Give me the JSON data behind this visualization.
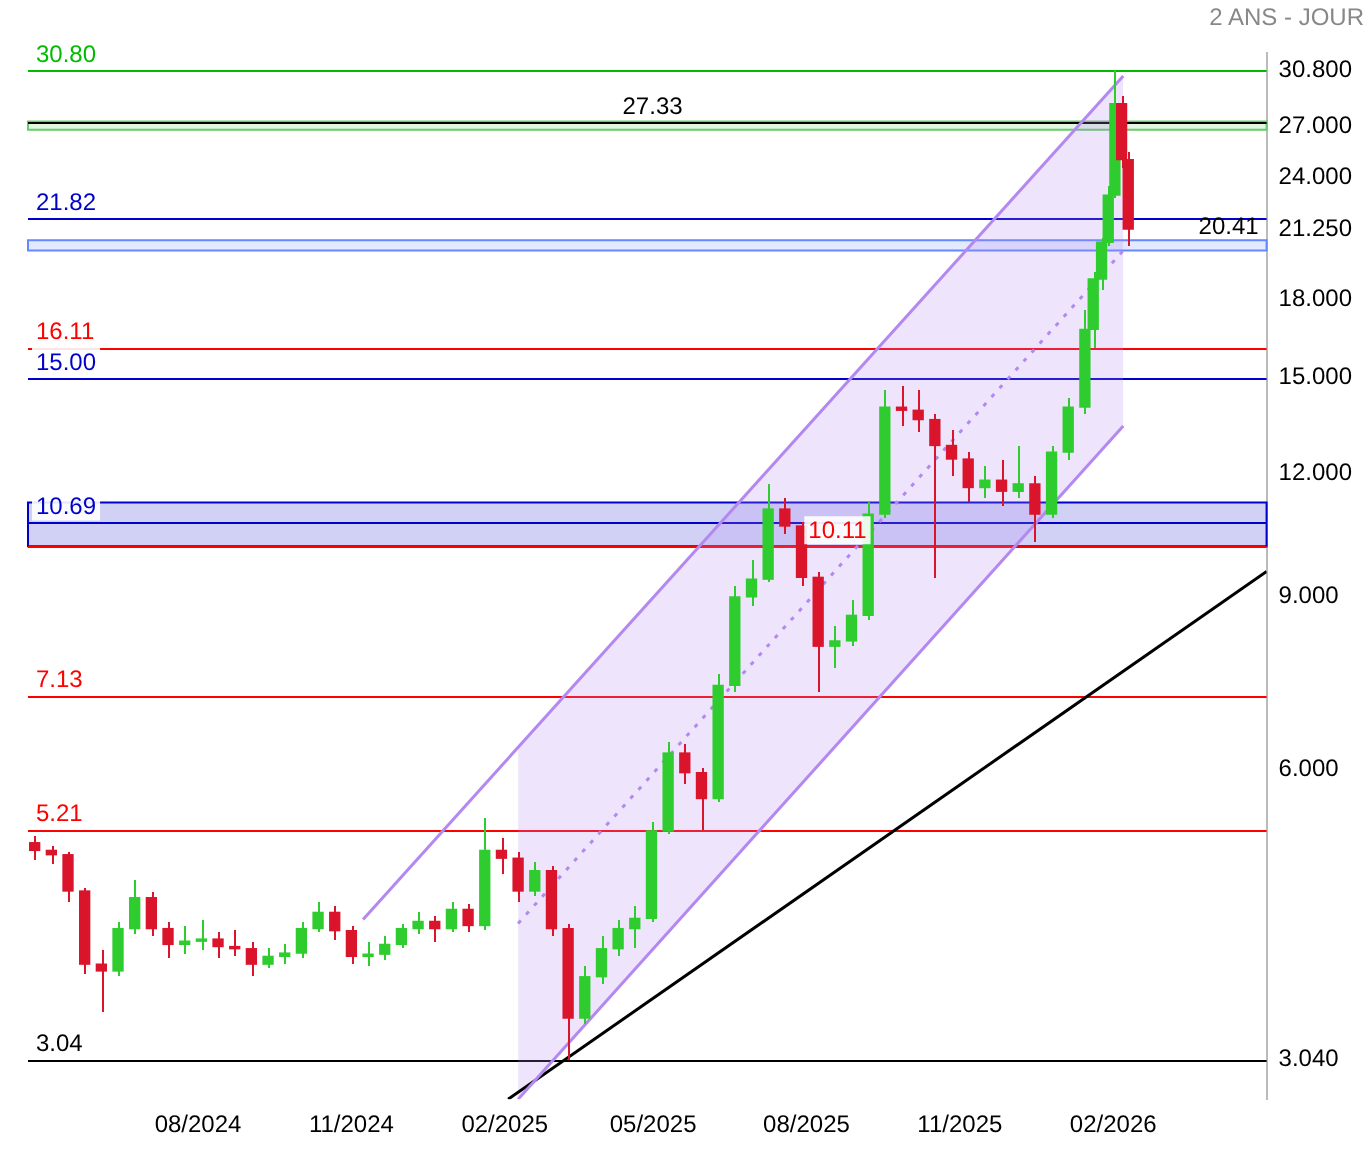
{
  "chart_data": {
    "type": "candlestick",
    "subtitle": "2 ANS - JOUR",
    "x": [
      "2024-04-25",
      "2024-05-05",
      "2024-05-15",
      "2024-05-25",
      "2024-06-04",
      "2024-06-14",
      "2024-06-24",
      "2024-07-04",
      "2024-07-14",
      "2024-07-24",
      "2024-08-03",
      "2024-08-13",
      "2024-08-23",
      "2024-09-02",
      "2024-09-12",
      "2024-09-22",
      "2024-10-02",
      "2024-10-12",
      "2024-10-22",
      "2024-11-01",
      "2024-11-11",
      "2024-11-21",
      "2024-12-01",
      "2024-12-11",
      "2024-12-21",
      "2024-12-31",
      "2025-01-10",
      "2025-01-20",
      "2025-01-30",
      "2025-02-09",
      "2025-02-19",
      "2025-03-01",
      "2025-03-11",
      "2025-03-21",
      "2025-03-31",
      "2025-04-10",
      "2025-04-20",
      "2025-04-30",
      "2025-05-10",
      "2025-05-20",
      "2025-05-30",
      "2025-06-09",
      "2025-06-19",
      "2025-06-29",
      "2025-07-09",
      "2025-07-19",
      "2025-07-29",
      "2025-08-08",
      "2025-08-18",
      "2025-08-28",
      "2025-09-07",
      "2025-09-17",
      "2025-09-27",
      "2025-10-07",
      "2025-10-17",
      "2025-10-27",
      "2025-11-06",
      "2025-11-16",
      "2025-11-26",
      "2025-12-06",
      "2025-12-16",
      "2025-12-26",
      "2026-01-05",
      "2026-01-15",
      "2026-01-20",
      "2026-01-25",
      "2026-01-29",
      "2026-02-02",
      "2026-02-06",
      "2026-02-10"
    ],
    "ohlc": [
      [
        5.05,
        5.12,
        4.85,
        4.96
      ],
      [
        4.96,
        5.02,
        4.8,
        4.91
      ],
      [
        4.91,
        4.95,
        4.4,
        4.51
      ],
      [
        4.51,
        4.55,
        3.72,
        3.8
      ],
      [
        3.8,
        3.92,
        3.4,
        3.74
      ],
      [
        3.74,
        4.2,
        3.7,
        4.13
      ],
      [
        4.13,
        4.62,
        4.08,
        4.44
      ],
      [
        4.44,
        4.5,
        4.05,
        4.13
      ],
      [
        4.13,
        4.2,
        3.85,
        3.98
      ],
      [
        3.98,
        4.15,
        3.9,
        4.01
      ],
      [
        4.01,
        4.22,
        3.92,
        4.03
      ],
      [
        4.03,
        4.1,
        3.85,
        3.96
      ],
      [
        3.96,
        4.12,
        3.88,
        3.94
      ],
      [
        3.94,
        4.0,
        3.7,
        3.8
      ],
      [
        3.8,
        3.95,
        3.76,
        3.87
      ],
      [
        3.87,
        3.98,
        3.8,
        3.9
      ],
      [
        3.9,
        4.2,
        3.86,
        4.13
      ],
      [
        4.13,
        4.4,
        4.1,
        4.29
      ],
      [
        4.29,
        4.35,
        4.02,
        4.11
      ],
      [
        4.11,
        4.16,
        3.8,
        3.87
      ],
      [
        3.87,
        4.0,
        3.78,
        3.89
      ],
      [
        3.89,
        4.05,
        3.84,
        3.98
      ],
      [
        3.98,
        4.18,
        3.95,
        4.13
      ],
      [
        4.13,
        4.3,
        4.08,
        4.2
      ],
      [
        4.2,
        4.26,
        4.0,
        4.13
      ],
      [
        4.13,
        4.4,
        4.1,
        4.32
      ],
      [
        4.32,
        4.38,
        4.1,
        4.16
      ],
      [
        4.16,
        5.35,
        4.12,
        4.96
      ],
      [
        4.96,
        5.1,
        4.7,
        4.87
      ],
      [
        4.87,
        4.95,
        4.4,
        4.51
      ],
      [
        4.51,
        4.82,
        4.45,
        4.73
      ],
      [
        4.73,
        4.78,
        4.05,
        4.13
      ],
      [
        4.13,
        4.18,
        3.04,
        3.35
      ],
      [
        3.35,
        3.78,
        3.3,
        3.69
      ],
      [
        3.69,
        4.05,
        3.62,
        3.94
      ],
      [
        3.94,
        4.22,
        3.88,
        4.13
      ],
      [
        4.13,
        4.35,
        3.95,
        4.23
      ],
      [
        4.23,
        5.3,
        4.2,
        5.19
      ],
      [
        5.19,
        6.4,
        5.15,
        6.23
      ],
      [
        6.23,
        6.35,
        5.8,
        5.95
      ],
      [
        5.95,
        6.02,
        5.2,
        5.6
      ],
      [
        5.6,
        7.5,
        5.55,
        7.3
      ],
      [
        7.3,
        9.2,
        7.2,
        8.98
      ],
      [
        8.98,
        9.8,
        8.8,
        9.36
      ],
      [
        9.36,
        11.7,
        9.3,
        11.03
      ],
      [
        11.03,
        11.3,
        10.4,
        10.6
      ],
      [
        10.6,
        10.7,
        9.2,
        9.4
      ],
      [
        9.4,
        9.5,
        7.2,
        8.0
      ],
      [
        8.0,
        8.4,
        7.6,
        8.1
      ],
      [
        8.1,
        8.9,
        8.0,
        8.6
      ],
      [
        8.6,
        11.2,
        8.5,
        10.9
      ],
      [
        10.9,
        14.6,
        10.8,
        14.0
      ],
      [
        14.0,
        14.7,
        13.4,
        13.9
      ],
      [
        13.9,
        14.6,
        13.2,
        13.6
      ],
      [
        13.6,
        13.8,
        9.4,
        12.8
      ],
      [
        12.8,
        13.3,
        11.9,
        12.4
      ],
      [
        12.4,
        12.6,
        11.2,
        11.6
      ],
      [
        11.6,
        12.2,
        11.3,
        11.8
      ],
      [
        11.8,
        12.4,
        11.1,
        11.5
      ],
      [
        11.5,
        12.8,
        11.3,
        11.7
      ],
      [
        11.7,
        11.9,
        10.2,
        10.9
      ],
      [
        10.9,
        12.8,
        10.8,
        12.6
      ],
      [
        12.6,
        14.3,
        12.4,
        14.0
      ],
      [
        14.0,
        17.6,
        13.8,
        16.8
      ],
      [
        16.8,
        19.2,
        16.1,
        18.9
      ],
      [
        18.9,
        20.8,
        18.4,
        20.6
      ],
      [
        20.6,
        23.5,
        20.4,
        23.0
      ],
      [
        23.0,
        30.8,
        22.8,
        28.5
      ],
      [
        28.5,
        29.0,
        24.5,
        25.0
      ],
      [
        25.0,
        25.4,
        20.4,
        21.25
      ]
    ],
    "colors": [
      "#d9142b",
      "#d9142b",
      "#d9142b",
      "#d9142b",
      "#d9142b",
      "#2ecc2e",
      "#2ecc2e",
      "#d9142b",
      "#d9142b",
      "#2ecc2e",
      "#2ecc2e",
      "#d9142b",
      "#d9142b",
      "#d9142b",
      "#2ecc2e",
      "#2ecc2e",
      "#2ecc2e",
      "#2ecc2e",
      "#d9142b",
      "#d9142b",
      "#2ecc2e",
      "#2ecc2e",
      "#2ecc2e",
      "#2ecc2e",
      "#d9142b",
      "#2ecc2e",
      "#d9142b",
      "#2ecc2e",
      "#d9142b",
      "#d9142b",
      "#2ecc2e",
      "#d9142b",
      "#d9142b",
      "#2ecc2e",
      "#2ecc2e",
      "#2ecc2e",
      "#2ecc2e",
      "#2ecc2e",
      "#2ecc2e",
      "#d9142b",
      "#d9142b",
      "#2ecc2e",
      "#2ecc2e",
      "#2ecc2e",
      "#2ecc2e",
      "#d9142b",
      "#d9142b",
      "#d9142b",
      "#2ecc2e",
      "#2ecc2e",
      "#2ecc2e",
      "#2ecc2e",
      "#d9142b",
      "#d9142b",
      "#d9142b",
      "#d9142b",
      "#d9142b",
      "#2ecc2e",
      "#d9142b",
      "#2ecc2e",
      "#d9142b",
      "#2ecc2e",
      "#2ecc2e",
      "#2ecc2e",
      "#2ecc2e",
      "#2ecc2e",
      "#2ecc2e",
      "#2ecc2e",
      "#d9142b",
      "#d9142b"
    ],
    "series": [
      {
        "type": "line",
        "color": "#b388f0",
        "line_style": "dotted",
        "x": [
          "2025-02-09",
          "2026-02-07"
        ],
        "values": [
          4.18,
          20.2
        ],
        "lower": [
          2.77,
          13.4
        ],
        "upper": [
          6.3,
          30.4
        ]
      },
      {
        "type": "line",
        "color": "#b388f0",
        "x": [
          "2024-11-08",
          "2026-02-07"
        ],
        "values": [
          4.22,
          30.4
        ]
      },
      {
        "type": "line",
        "color": "#b388f0",
        "x": [
          "2025-02-09",
          "2026-02-07"
        ],
        "values": [
          2.77,
          13.4
        ]
      },
      {
        "type": "line",
        "color": "#000000",
        "x": [
          "2025-02-03",
          "2026-05-04"
        ],
        "values": [
          2.77,
          9.53
        ]
      }
    ],
    "xlim": [
      "2024-04-21",
      "2026-05-04"
    ],
    "xticks": [
      {
        "value": "2024-08-01",
        "label": "08/2024"
      },
      {
        "value": "2024-11-01",
        "label": "11/2024"
      },
      {
        "value": "2025-02-01",
        "label": "02/2025"
      },
      {
        "value": "2025-05-01",
        "label": "05/2025"
      },
      {
        "value": "2025-08-01",
        "label": "08/2025"
      },
      {
        "value": "2025-11-01",
        "label": "11/2025"
      },
      {
        "value": "2026-02-01",
        "label": "02/2026"
      }
    ],
    "ylim": [
      2.77,
      32.1
    ],
    "yticks": [
      {
        "value": 3.04,
        "label": "3.040"
      },
      {
        "value": 6,
        "label": "6.000"
      },
      {
        "value": 9,
        "label": "9.000"
      },
      {
        "value": 12,
        "label": "12.000"
      },
      {
        "value": 15,
        "label": "15.000"
      },
      {
        "value": 18,
        "label": "18.000"
      },
      {
        "value": 21.25,
        "label": "21.250"
      },
      {
        "value": 24,
        "label": "24.000"
      },
      {
        "value": 27,
        "label": "27.000"
      },
      {
        "value": 30.8,
        "label": "30.800"
      }
    ],
    "log": true,
    "grid": false,
    "legend": false,
    "ref_lines": [
      {
        "axis": "y",
        "value": 30.8,
        "label": "30.80",
        "color": "#00bb00"
      },
      {
        "axis": "y",
        "value": 27.33,
        "label": "27.33",
        "color": "#000000"
      },
      {
        "axis": "y",
        "value": 21.82,
        "label": "21.82",
        "color": "#0000cc"
      },
      {
        "axis": "y",
        "value": 16.11,
        "label": "16.11",
        "color": "#ff0000"
      },
      {
        "axis": "y",
        "value": 15.0,
        "label": "15.00",
        "color": "#0000cc"
      },
      {
        "axis": "y",
        "value": 10.69,
        "label": "10.69",
        "color": "#0000cc"
      },
      {
        "axis": "y",
        "value": 10.11,
        "label": "10.11",
        "color": "#ff0000"
      },
      {
        "axis": "y",
        "value": 7.13,
        "label": "7.13",
        "color": "#ff0000"
      },
      {
        "axis": "y",
        "value": 5.21,
        "label": "5.21",
        "color": "#ff0000"
      },
      {
        "axis": "y",
        "value": 3.04,
        "label": "3.04",
        "color": "#000000"
      }
    ],
    "bands": [
      {
        "axis": "y",
        "from": 26.8,
        "to": 27.33,
        "color": "#66cc66"
      },
      {
        "axis": "y",
        "from": 10.11,
        "to": 11.2,
        "color": "#0000cc"
      },
      {
        "axis": "y",
        "from": 20.2,
        "to": 20.7,
        "label": "20.41",
        "color": "#6688ff"
      }
    ]
  }
}
